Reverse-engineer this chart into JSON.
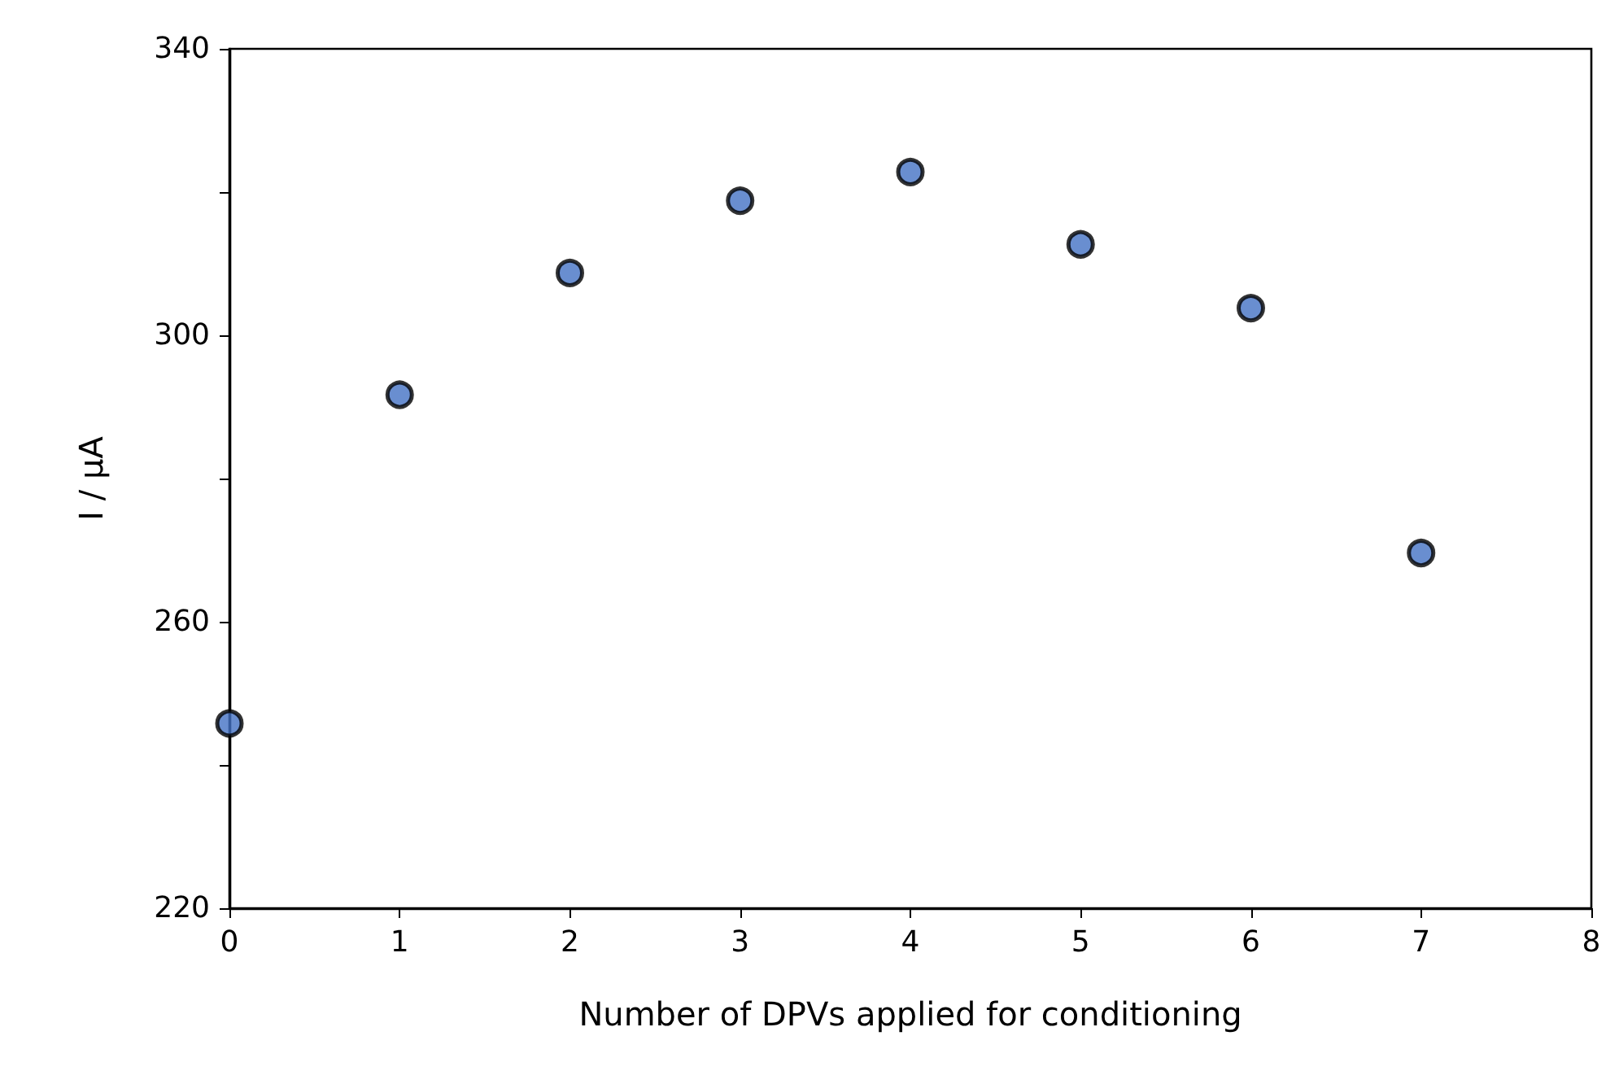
{
  "chart_data": {
    "type": "scatter",
    "xlabel": "Number of DPVs applied for conditioning",
    "ylabel": "I / μA",
    "x": [
      0,
      1,
      2,
      3,
      4,
      5,
      6,
      7
    ],
    "series": [
      {
        "color": "#4472c4",
        "values": [
          245.8,
          291.7,
          308.7,
          318.8,
          322.8,
          312.7,
          303.8,
          269.6
        ]
      }
    ],
    "xlim": [
      0,
      8
    ],
    "xticks": [
      0,
      1,
      2,
      3,
      4,
      5,
      6,
      7,
      8
    ],
    "ylim": [
      220,
      340
    ],
    "yticks": [
      220,
      {
        "value": 240,
        "label": null
      },
      260,
      {
        "value": 280,
        "label": null
      },
      300,
      {
        "value": 320,
        "label": null
      },
      340
    ],
    "grid": false,
    "marker": "circle"
  }
}
